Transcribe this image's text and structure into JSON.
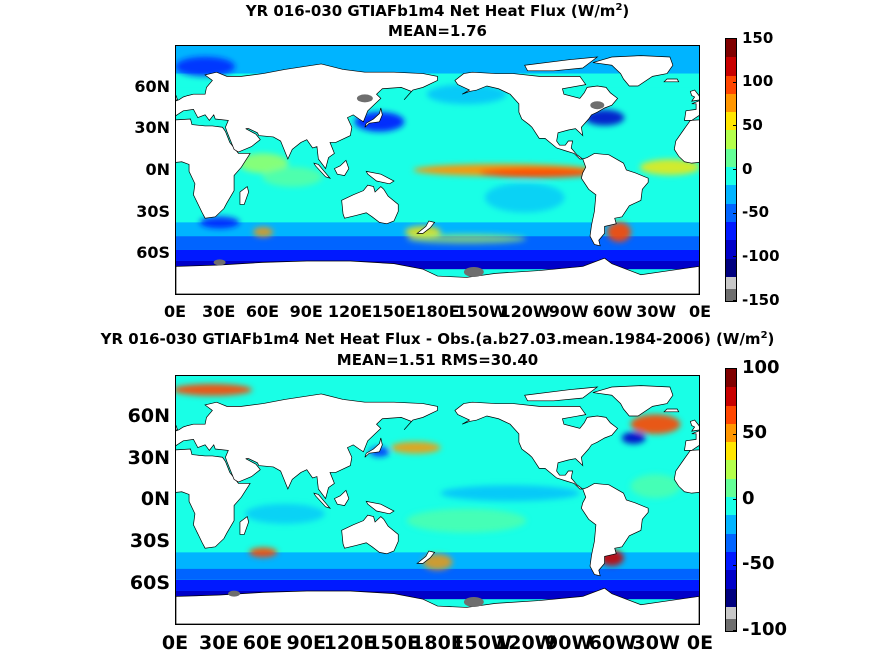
{
  "colorscale": [
    "#00007f",
    "#0000c8",
    "#0019ff",
    "#0064ff",
    "#00b4ff",
    "#19ffe6",
    "#64ff96",
    "#b4ff4b",
    "#ffe600",
    "#ff9600",
    "#ff4600",
    "#c80000",
    "#7f0000"
  ],
  "land_color": "#ffffff",
  "ice_color": "#6e6e6e",
  "chart_data": [
    {
      "type": "heatmap",
      "title_line1": "YR 016-030 GTIAFb1m4  Net Heat Flux (W/m",
      "title_sup": "2",
      "title_close": ")",
      "title_line2": "MEAN=1.76",
      "xticks": [
        "0E",
        "30E",
        "60E",
        "90E",
        "120E",
        "150E",
        "180E",
        "150W",
        "120W",
        "90W",
        "60W",
        "30W",
        "0E"
      ],
      "yticks": [
        "60N",
        "30N",
        "0N",
        "30S",
        "60S"
      ],
      "colorbar_ticks": [
        "150",
        "100",
        "50",
        "0",
        "-50",
        "-100",
        "-150"
      ],
      "clim": [
        -150,
        150
      ],
      "mean": 1.76
    },
    {
      "type": "heatmap",
      "title_line1": "YR 016-030 GTIAFb1m4  Net Heat Flux - Obs.(a.b27.03.mean.1984-2006) (W/m",
      "title_sup": "2",
      "title_close": ")",
      "title_line2": "MEAN=1.51 RMS=30.40",
      "xticks": [
        "0E",
        "30E",
        "60E",
        "90E",
        "120E",
        "150E",
        "180E",
        "150W",
        "120W",
        "90W",
        "60W",
        "30W",
        "0E"
      ],
      "yticks": [
        "60N",
        "30N",
        "0N",
        "30S",
        "60S"
      ],
      "colorbar_ticks": [
        "100",
        "50",
        "0",
        "-50",
        "-100"
      ],
      "clim": [
        -100,
        100
      ],
      "mean": 1.51,
      "rms": 30.4
    }
  ]
}
